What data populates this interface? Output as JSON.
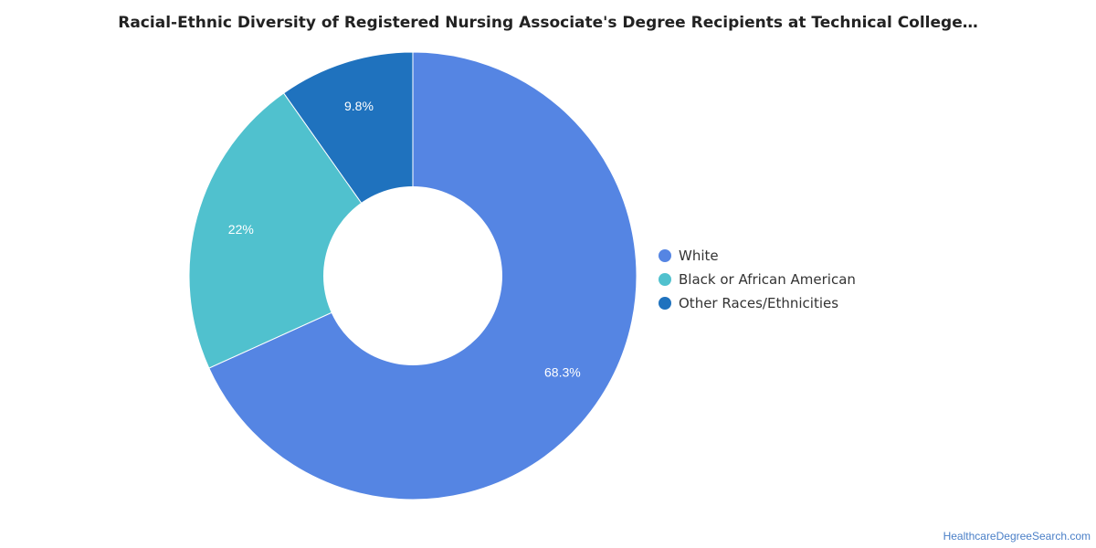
{
  "chart_data": {
    "type": "pie",
    "title": "Racial-Ethnic Diversity of Registered Nursing Associate's Degree Recipients at Technical College…",
    "donut": true,
    "slices": [
      {
        "label": "White",
        "value": 68.3,
        "display": "68.3%",
        "color": "#5585e3"
      },
      {
        "label": "Black or African American",
        "value": 22,
        "display": "22%",
        "color": "#50c1ce"
      },
      {
        "label": "Other Races/Ethnicities",
        "value": 9.8,
        "display": "9.8%",
        "color": "#1f72be"
      }
    ],
    "legend_position": "right"
  },
  "credit": "HealthcareDegreeSearch.com"
}
